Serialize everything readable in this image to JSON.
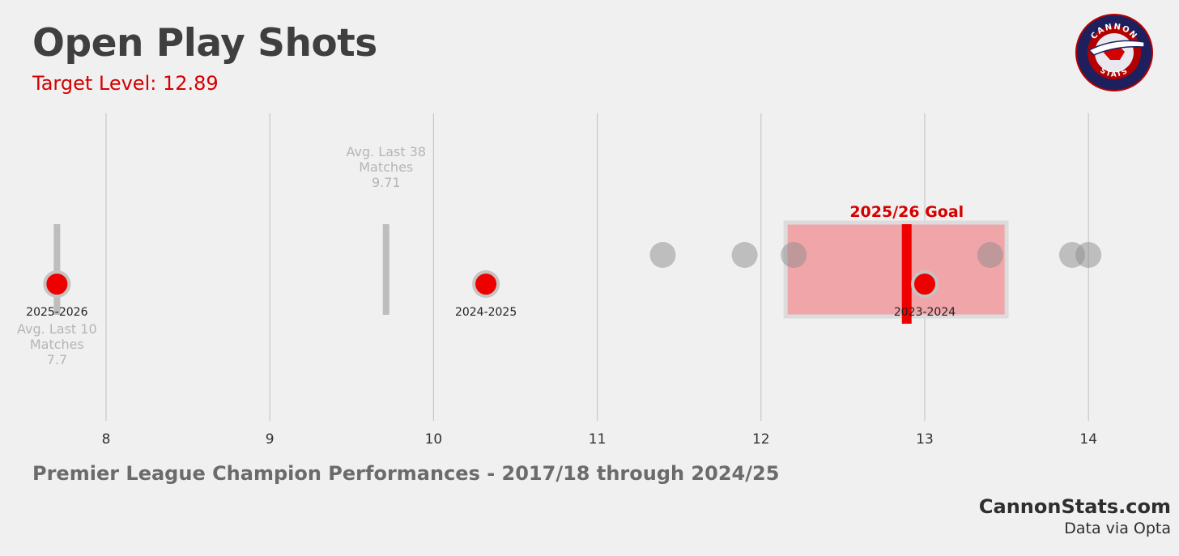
{
  "title": "Open Play Shots",
  "subtitle": "Target Level: 12.89",
  "footer": {
    "caption": "Premier League Champion Performances - 2017/18 through 2024/25",
    "brand": "CannonStats.com",
    "source": "Data via Opta"
  },
  "logo": {
    "top_text": "CANNON",
    "bottom_text": "STATS",
    "colors": {
      "ring": "#1d1f5e",
      "inner": "#b30000",
      "accent": "#d50000"
    }
  },
  "chart_data": {
    "type": "scatter",
    "title": "Open Play Shots",
    "xlim": [
      7.5,
      14.5
    ],
    "xticks": [
      8,
      9,
      10,
      11,
      12,
      13,
      14
    ],
    "grid": "vertical",
    "champion_values": [
      11.4,
      11.9,
      12.2,
      13.4,
      13.9,
      14.0
    ],
    "seasons": [
      {
        "label": "2025-2026",
        "value": 7.7
      },
      {
        "label": "2024-2025",
        "value": 10.32
      },
      {
        "label": "2023-2024",
        "value": 13.0
      }
    ],
    "averages": [
      {
        "lines": [
          "Avg. Last 38",
          "Matches",
          "9.71"
        ],
        "value": 9.71
      },
      {
        "lines": [
          "Avg. Last 10",
          "Matches",
          "7.7"
        ],
        "value": 7.7
      }
    ],
    "goal": {
      "label": "2025/26 Goal",
      "value": 12.89,
      "band": [
        12.15,
        13.5
      ]
    },
    "colors": {
      "highlight": "#ef0000",
      "champion_point": "#8c8c8c",
      "band": "#f0a5a8",
      "grid": "#c8c8c8",
      "avg_marker": "#bdbdbd",
      "avg_text": "#b5b5b5",
      "goal_text": "#d50000"
    }
  }
}
